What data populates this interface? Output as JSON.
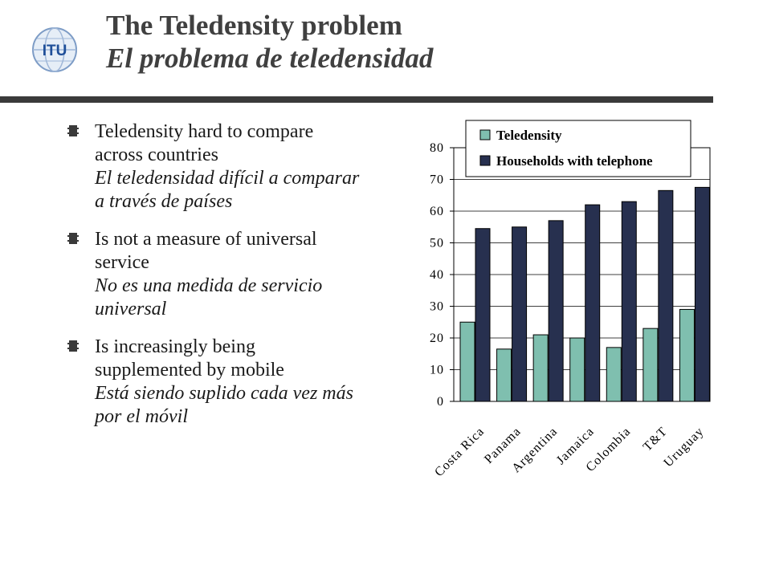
{
  "header": {
    "title_en": "The Teledensity problem",
    "title_es": "El problema de teledensidad",
    "logo_text": "ITU"
  },
  "bullets": [
    {
      "en": "Teledensity hard to compare across countries",
      "es": "El teledensidad difícil a comparar a través de países"
    },
    {
      "en": "Is not a measure of universal service",
      "es": "No es una medida de servicio universal"
    },
    {
      "en": "Is increasingly being supplemented by mobile",
      "es": "Está siendo suplido cada vez más por el móvil"
    }
  ],
  "colors": {
    "teledensity": "#7fbfaf",
    "households": "#27304f",
    "title": "#404040",
    "rule": "#3a3a3a"
  },
  "chart_data": {
    "type": "bar",
    "categories": [
      "Costa Rica",
      "Panama",
      "Argentina",
      "Jamaica",
      "Colombia",
      "T&T",
      "Uruguay"
    ],
    "series": [
      {
        "name": "Teledensity",
        "values": [
          25,
          16.5,
          21,
          20,
          17,
          23,
          29
        ]
      },
      {
        "name": "Households with telephone",
        "values": [
          54.5,
          55,
          57,
          62,
          63,
          66.5,
          67.5
        ]
      }
    ],
    "yticks": [
      "0",
      "10",
      "20",
      "30",
      "40",
      "50",
      "60",
      "70",
      "80"
    ],
    "ylim": [
      0,
      80
    ],
    "legend_position": "top",
    "grid": true
  }
}
